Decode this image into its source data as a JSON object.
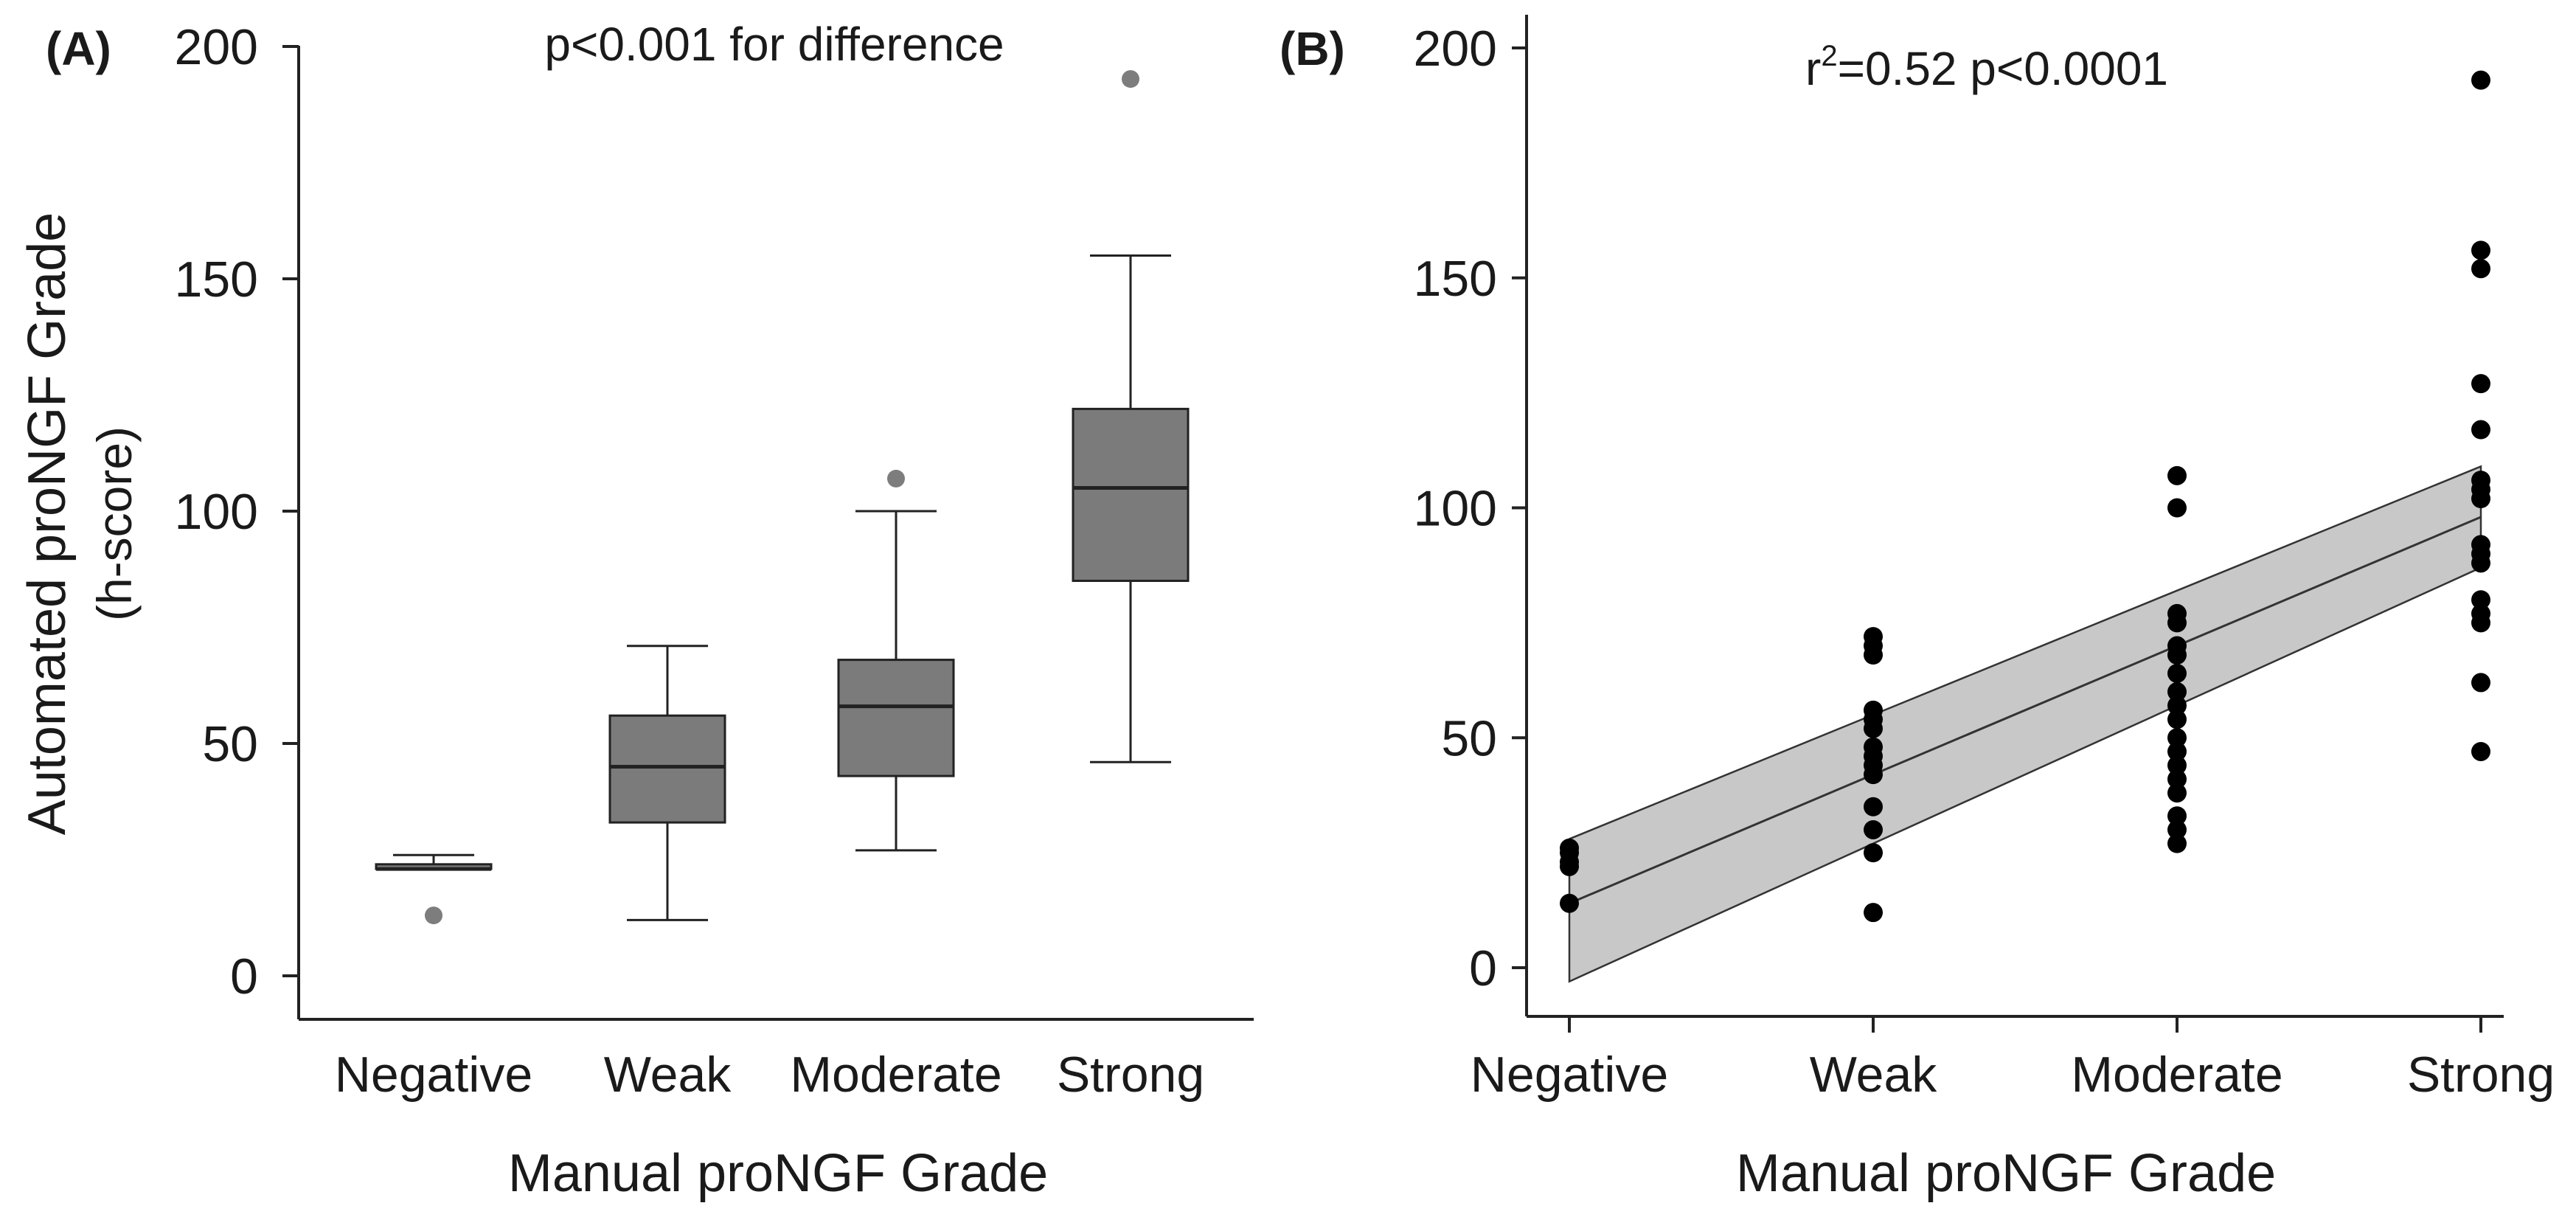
{
  "colors": {
    "box_fill": "#7b7b7b",
    "box_stroke": "#222222",
    "outlier": "#7d7d7d",
    "axis": "#222222",
    "band_fill": "#c8c8c8",
    "point": "#000000"
  },
  "chart_data": [
    {
      "type": "box",
      "panel_label": "(A)",
      "annotation": "p<0.001 for difference",
      "xlabel": "Manual proNGF Grade",
      "ylabel_line1": "Automated proNGF Grade",
      "ylabel_line2": "(h-score)",
      "categories": [
        "Negative",
        "Weak",
        "Moderate",
        "Strong"
      ],
      "ylim": [
        0,
        200
      ],
      "yticks": [
        0,
        50,
        100,
        150,
        200
      ],
      "ytick_labels": [
        "0",
        "50",
        "100",
        "150",
        "200"
      ],
      "boxes": [
        {
          "category": "Negative",
          "whisker_low": 23,
          "q1": 23,
          "median": 23,
          "q3": 24,
          "whisker_high": 26,
          "outliers": [
            13
          ]
        },
        {
          "category": "Weak",
          "whisker_low": 12,
          "q1": 33,
          "median": 45,
          "q3": 56,
          "whisker_high": 71,
          "outliers": []
        },
        {
          "category": "Moderate",
          "whisker_low": 27,
          "q1": 43,
          "median": 58,
          "q3": 68,
          "whisker_high": 100,
          "outliers": [
            107
          ]
        },
        {
          "category": "Strong",
          "whisker_low": 46,
          "q1": 85,
          "median": 105,
          "q3": 122,
          "whisker_high": 155,
          "outliers": [
            193
          ]
        }
      ]
    },
    {
      "type": "scatter",
      "panel_label": "(B)",
      "annotation_prefix": "r",
      "annotation_sup": "2",
      "annotation_suffix": "=0.52 p<0.0001",
      "xlabel": "Manual proNGF Grade",
      "categories": [
        "Negative",
        "Weak",
        "Moderate",
        "Strong"
      ],
      "ylim": [
        -10,
        205
      ],
      "yticks": [
        0,
        50,
        100,
        150,
        200
      ],
      "ytick_labels": [
        "0",
        "50",
        "100",
        "150",
        "200"
      ],
      "points": [
        {
          "x": 0,
          "y": 26
        },
        {
          "x": 0,
          "y": 25
        },
        {
          "x": 0,
          "y": 23
        },
        {
          "x": 0,
          "y": 22
        },
        {
          "x": 0,
          "y": 14
        },
        {
          "x": 1,
          "y": 72
        },
        {
          "x": 1,
          "y": 70
        },
        {
          "x": 1,
          "y": 68
        },
        {
          "x": 1,
          "y": 56
        },
        {
          "x": 1,
          "y": 54
        },
        {
          "x": 1,
          "y": 52
        },
        {
          "x": 1,
          "y": 48
        },
        {
          "x": 1,
          "y": 46
        },
        {
          "x": 1,
          "y": 44
        },
        {
          "x": 1,
          "y": 42
        },
        {
          "x": 1,
          "y": 35
        },
        {
          "x": 1,
          "y": 30
        },
        {
          "x": 1,
          "y": 25
        },
        {
          "x": 1,
          "y": 12
        },
        {
          "x": 2,
          "y": 107
        },
        {
          "x": 2,
          "y": 100
        },
        {
          "x": 2,
          "y": 77
        },
        {
          "x": 2,
          "y": 75
        },
        {
          "x": 2,
          "y": 70
        },
        {
          "x": 2,
          "y": 68
        },
        {
          "x": 2,
          "y": 64
        },
        {
          "x": 2,
          "y": 60
        },
        {
          "x": 2,
          "y": 57
        },
        {
          "x": 2,
          "y": 54
        },
        {
          "x": 2,
          "y": 50
        },
        {
          "x": 2,
          "y": 47
        },
        {
          "x": 2,
          "y": 44
        },
        {
          "x": 2,
          "y": 41
        },
        {
          "x": 2,
          "y": 38
        },
        {
          "x": 2,
          "y": 33
        },
        {
          "x": 2,
          "y": 30
        },
        {
          "x": 2,
          "y": 27
        },
        {
          "x": 3,
          "y": 193
        },
        {
          "x": 3,
          "y": 156
        },
        {
          "x": 3,
          "y": 152
        },
        {
          "x": 3,
          "y": 127
        },
        {
          "x": 3,
          "y": 117
        },
        {
          "x": 3,
          "y": 106
        },
        {
          "x": 3,
          "y": 104
        },
        {
          "x": 3,
          "y": 102
        },
        {
          "x": 3,
          "y": 92
        },
        {
          "x": 3,
          "y": 90
        },
        {
          "x": 3,
          "y": 88
        },
        {
          "x": 3,
          "y": 80
        },
        {
          "x": 3,
          "y": 77
        },
        {
          "x": 3,
          "y": 75
        },
        {
          "x": 3,
          "y": 62
        },
        {
          "x": 3,
          "y": 47
        }
      ],
      "regression": {
        "y_at_x0": 14,
        "y_at_x3": 98
      },
      "ci_upper": {
        "y_at_x0": 28,
        "y_at_x3": 109
      },
      "ci_lower": {
        "y_at_x0": -3,
        "y_at_x3": 87
      }
    }
  ]
}
